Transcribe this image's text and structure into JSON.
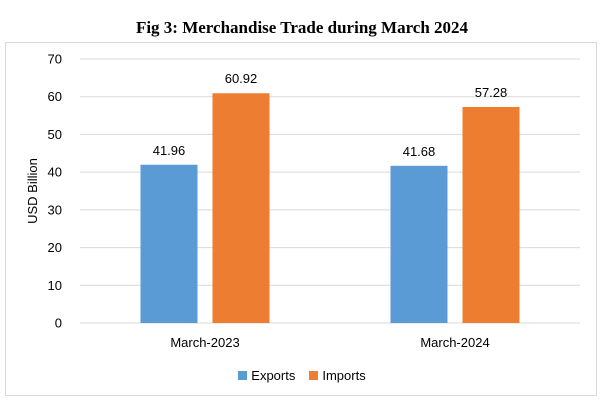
{
  "chart_data": {
    "type": "bar",
    "title": "Fig 3: Merchandise Trade during March 2024",
    "ylabel": "USD Billion",
    "xlabel": "",
    "categories": [
      "March-2023",
      "March-2024"
    ],
    "series": [
      {
        "name": "Exports",
        "values": [
          41.96,
          41.68
        ],
        "color": "#5b9bd5"
      },
      {
        "name": "Imports",
        "values": [
          60.92,
          57.28
        ],
        "color": "#ed7d31"
      }
    ],
    "ylim": [
      0,
      70
    ],
    "yticks": [
      0,
      10,
      20,
      30,
      40,
      50,
      60,
      70
    ],
    "grid": true,
    "legend_position": "bottom"
  }
}
